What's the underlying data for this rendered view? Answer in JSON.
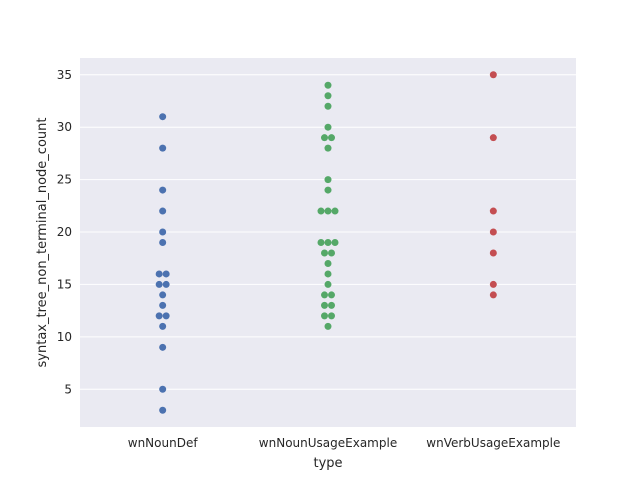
{
  "chart_data": {
    "type": "scatter",
    "title": "",
    "xlabel": "type",
    "ylabel": "syntax_tree_non_terminal_node_count",
    "categories": [
      "wnNounDef",
      "wnNounUsageExample",
      "wnVerbUsageExample"
    ],
    "ylim": [
      1.4,
      36.6
    ],
    "yticks": [
      5,
      10,
      15,
      20,
      25,
      30,
      35
    ],
    "grid": true,
    "background_color": "#eaeaf2",
    "series": [
      {
        "category": "wnNounDef",
        "color": "#4c72b0",
        "values": [
          3,
          5,
          9,
          11,
          12,
          12,
          13,
          14,
          15,
          15,
          16,
          16,
          19,
          20,
          22,
          24,
          28,
          31
        ]
      },
      {
        "category": "wnNounUsageExample",
        "color": "#55a868",
        "values": [
          11,
          12,
          12,
          13,
          13,
          14,
          14,
          15,
          16,
          17,
          18,
          18,
          19,
          19,
          19,
          22,
          22,
          22,
          24,
          25,
          28,
          29,
          29,
          30,
          32,
          33,
          34
        ]
      },
      {
        "category": "wnVerbUsageExample",
        "color": "#c44e52",
        "values": [
          14,
          15,
          18,
          20,
          22,
          29,
          35
        ]
      }
    ]
  }
}
